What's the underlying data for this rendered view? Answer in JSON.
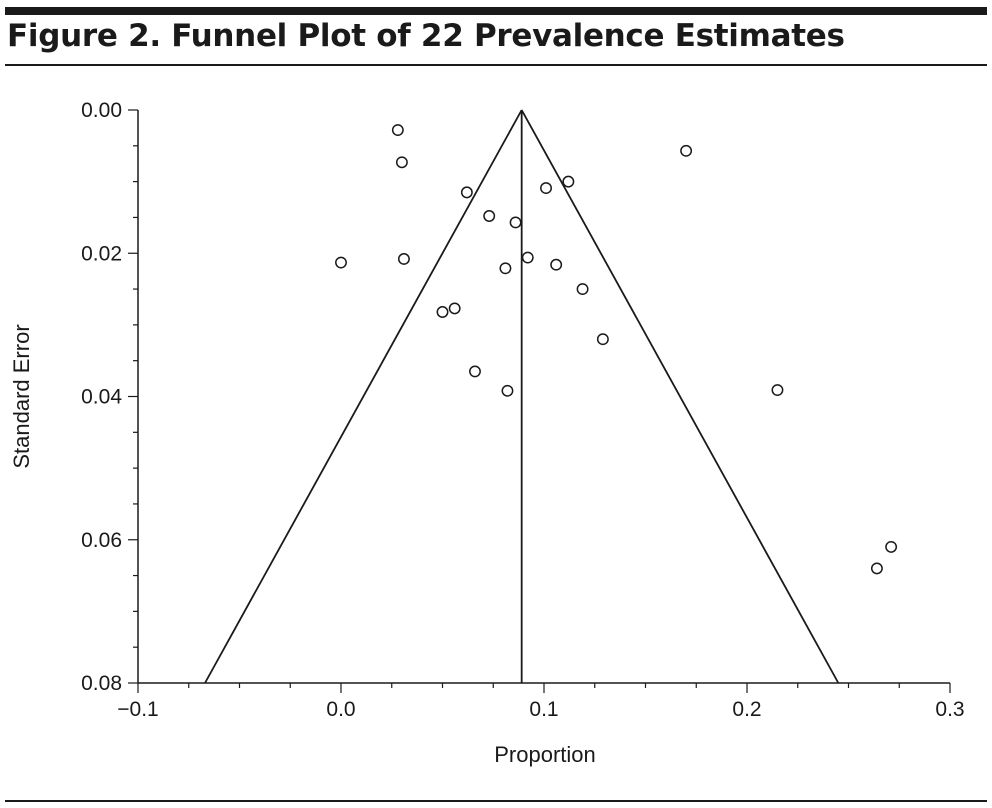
{
  "figure": {
    "title": "Figure 2. Funnel Plot of 22 Prevalence Estimates"
  },
  "chart_data": {
    "type": "scatter",
    "xlabel": "Proportion",
    "ylabel": "Standard Error",
    "xlim": [
      -0.1,
      0.3
    ],
    "ylim": [
      0.0,
      0.08
    ],
    "y_inverted": true,
    "x_ticks": [
      -0.1,
      0.0,
      0.1,
      0.2,
      0.3
    ],
    "x_tick_labels": [
      "−0.1",
      "0.0",
      "0.1",
      "0.2",
      "0.3"
    ],
    "y_ticks": [
      0.0,
      0.02,
      0.04,
      0.06,
      0.08
    ],
    "y_tick_labels": [
      "0.00",
      "0.02",
      "0.04",
      "0.06",
      "0.08"
    ],
    "grid": false,
    "pooled_estimate": 0.089,
    "funnel_bottom_se": 0.08,
    "funnel_bottom_x": [
      -0.067,
      0.245
    ],
    "marker": "open-circle",
    "line_color": "#1a1a1a",
    "points": [
      {
        "x": 0.028,
        "y": 0.0028
      },
      {
        "x": 0.03,
        "y": 0.0073
      },
      {
        "x": 0.17,
        "y": 0.0057
      },
      {
        "x": 0.062,
        "y": 0.0115
      },
      {
        "x": 0.101,
        "y": 0.0109
      },
      {
        "x": 0.112,
        "y": 0.01
      },
      {
        "x": 0.073,
        "y": 0.0148
      },
      {
        "x": 0.086,
        "y": 0.0157
      },
      {
        "x": 0.0,
        "y": 0.0213
      },
      {
        "x": 0.031,
        "y": 0.0208
      },
      {
        "x": 0.081,
        "y": 0.0221
      },
      {
        "x": 0.092,
        "y": 0.0206
      },
      {
        "x": 0.106,
        "y": 0.0216
      },
      {
        "x": 0.119,
        "y": 0.025
      },
      {
        "x": 0.05,
        "y": 0.0282
      },
      {
        "x": 0.056,
        "y": 0.0277
      },
      {
        "x": 0.129,
        "y": 0.032
      },
      {
        "x": 0.066,
        "y": 0.0365
      },
      {
        "x": 0.082,
        "y": 0.0392
      },
      {
        "x": 0.215,
        "y": 0.0391
      },
      {
        "x": 0.271,
        "y": 0.061
      },
      {
        "x": 0.264,
        "y": 0.064
      }
    ]
  }
}
